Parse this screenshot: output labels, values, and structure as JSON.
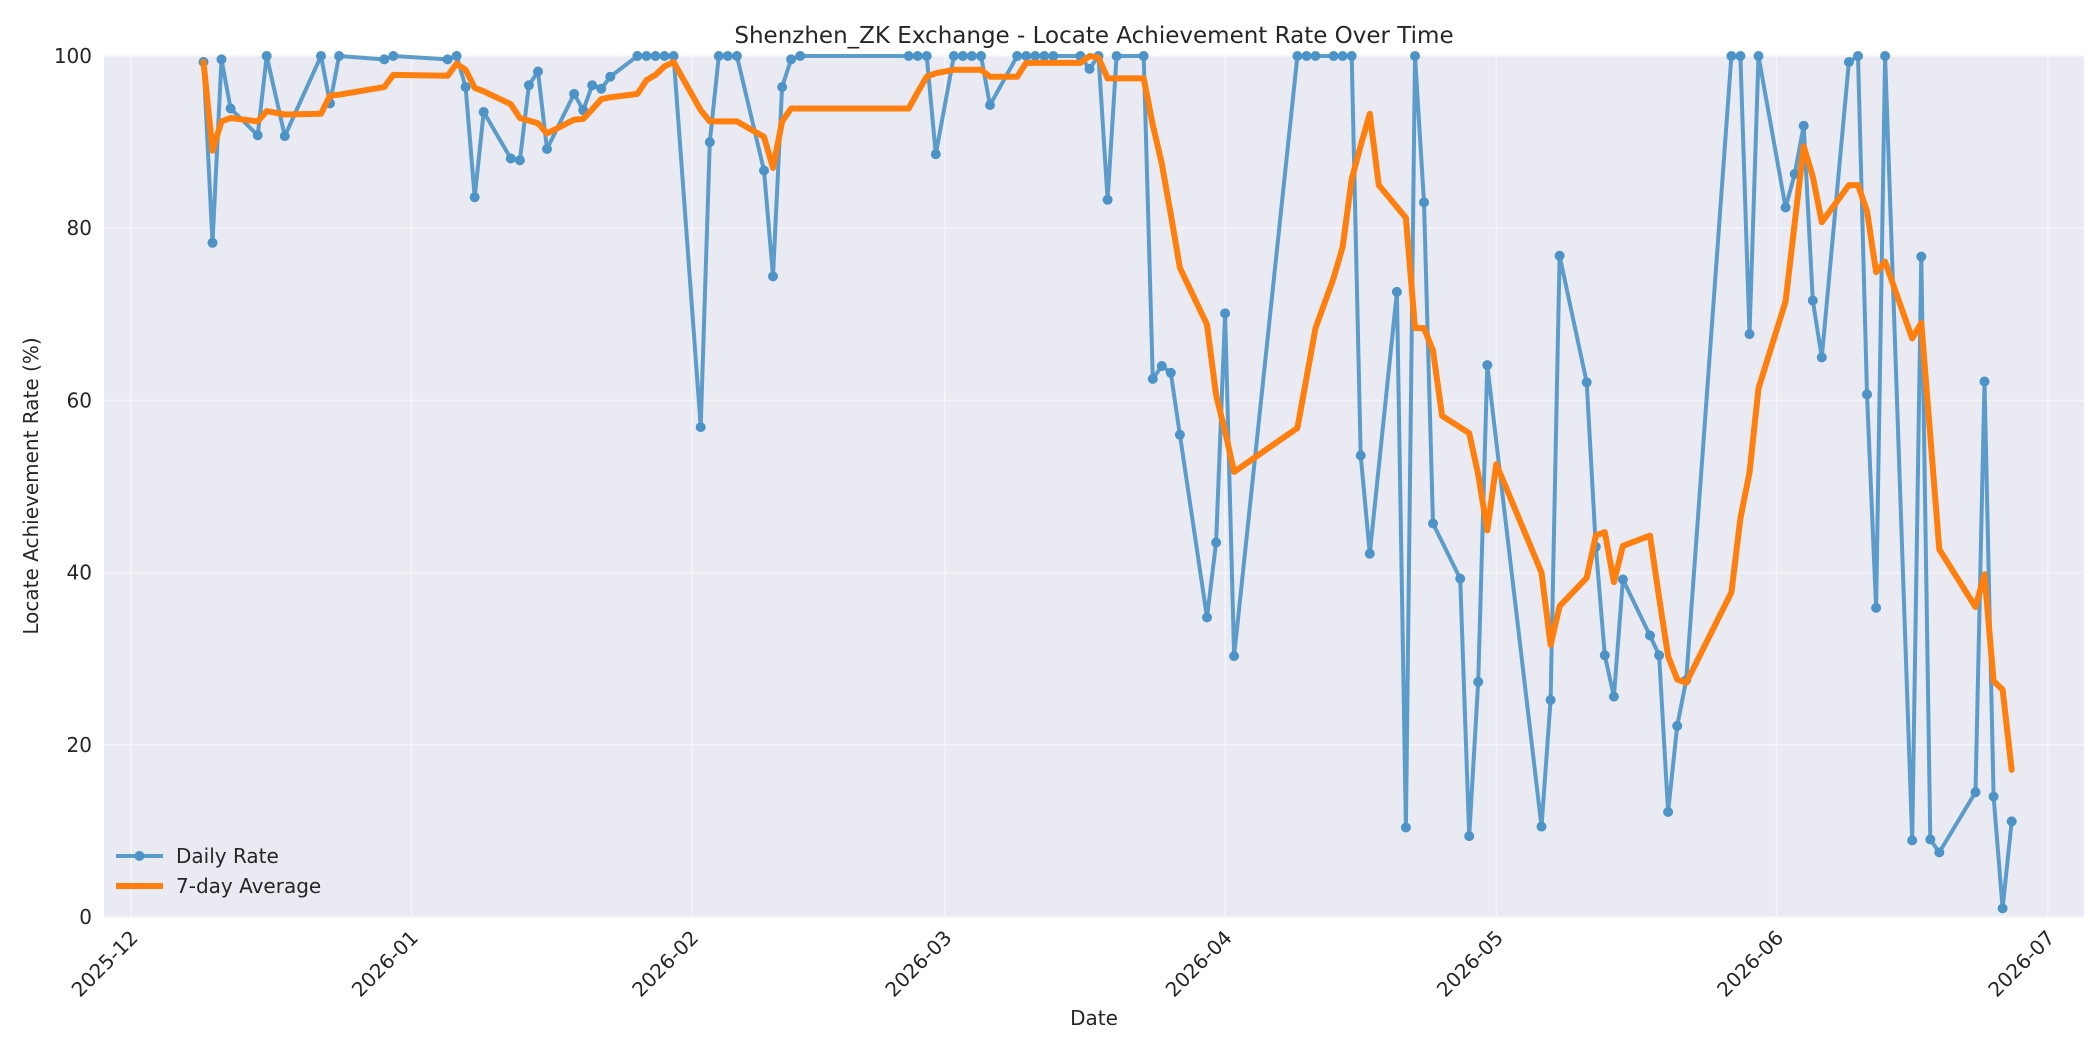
{
  "chart_data": {
    "type": "line",
    "title": "Shenzhen_ZK Exchange - Locate Achievement Rate Over Time",
    "xlabel": "Date",
    "ylabel": "Locate Achievement Rate (%)",
    "ylim": [
      0,
      100
    ],
    "xlim": [
      "2025-11-28",
      "2026-07-05"
    ],
    "yticks": [
      0,
      20,
      40,
      60,
      80,
      100
    ],
    "xticks": [
      "2025-12",
      "2026-01",
      "2026-02",
      "2026-03",
      "2026-04",
      "2026-05",
      "2026-06",
      "2026-07"
    ],
    "xtick_dates": [
      "2025-12-01",
      "2026-01-01",
      "2026-02-01",
      "2026-03-01",
      "2026-04-01",
      "2026-05-01",
      "2026-06-01",
      "2026-07-01"
    ],
    "grid": true,
    "legend": "bottom-left",
    "colors": {
      "daily": "#4c93c7",
      "avg": "#ff7f0e",
      "plot_bg": "#eaeaf2",
      "grid": "#f5f5f9"
    },
    "series": [
      {
        "name": "Daily Rate",
        "style": "line-markers",
        "points": [
          [
            "2025-12-09",
            99.3
          ],
          [
            "2025-12-10",
            78.3
          ],
          [
            "2025-12-11",
            99.6
          ],
          [
            "2025-12-12",
            93.9
          ],
          [
            "2025-12-15",
            90.8
          ],
          [
            "2025-12-16",
            100
          ],
          [
            "2025-12-18",
            90.7
          ],
          [
            "2025-12-22",
            100
          ],
          [
            "2025-12-23",
            94.5
          ],
          [
            "2025-12-24",
            100
          ],
          [
            "2025-12-29",
            99.6
          ],
          [
            "2025-12-30",
            100
          ],
          [
            "2026-01-05",
            99.6
          ],
          [
            "2026-01-06",
            100
          ],
          [
            "2026-01-07",
            96.4
          ],
          [
            "2026-01-08",
            83.6
          ],
          [
            "2026-01-09",
            93.5
          ],
          [
            "2026-01-12",
            88.1
          ],
          [
            "2026-01-13",
            87.9
          ],
          [
            "2026-01-14",
            96.6
          ],
          [
            "2026-01-15",
            98.2
          ],
          [
            "2026-01-16",
            89.2
          ],
          [
            "2026-01-19",
            95.6
          ],
          [
            "2026-01-20",
            93.7
          ],
          [
            "2026-01-21",
            96.6
          ],
          [
            "2026-01-22",
            96.2
          ],
          [
            "2026-01-23",
            97.6
          ],
          [
            "2026-01-26",
            100
          ],
          [
            "2026-01-27",
            100
          ],
          [
            "2026-01-28",
            100
          ],
          [
            "2026-01-29",
            100
          ],
          [
            "2026-01-30",
            100
          ],
          [
            "2026-02-02",
            56.9
          ],
          [
            "2026-02-03",
            90.0
          ],
          [
            "2026-02-04",
            100
          ],
          [
            "2026-02-05",
            100
          ],
          [
            "2026-02-06",
            100
          ],
          [
            "2026-02-09",
            86.7
          ],
          [
            "2026-02-10",
            74.4
          ],
          [
            "2026-02-11",
            96.4
          ],
          [
            "2026-02-12",
            99.6
          ],
          [
            "2026-02-13",
            100
          ],
          [
            "2026-02-25",
            100
          ],
          [
            "2026-02-26",
            100
          ],
          [
            "2026-02-27",
            100
          ],
          [
            "2026-02-28",
            88.6
          ],
          [
            "2026-03-02",
            100
          ],
          [
            "2026-03-03",
            100
          ],
          [
            "2026-03-04",
            100
          ],
          [
            "2026-03-05",
            100
          ],
          [
            "2026-03-06",
            94.3
          ],
          [
            "2026-03-09",
            100
          ],
          [
            "2026-03-10",
            100
          ],
          [
            "2026-03-11",
            100
          ],
          [
            "2026-03-12",
            100
          ],
          [
            "2026-03-13",
            100
          ],
          [
            "2026-03-16",
            100
          ],
          [
            "2026-03-17",
            98.5
          ],
          [
            "2026-03-18",
            100
          ],
          [
            "2026-03-19",
            83.3
          ],
          [
            "2026-03-20",
            100
          ],
          [
            "2026-03-23",
            100
          ],
          [
            "2026-03-24",
            62.5
          ],
          [
            "2026-03-25",
            64.0
          ],
          [
            "2026-03-26",
            63.2
          ],
          [
            "2026-03-27",
            56.0
          ],
          [
            "2026-03-30",
            34.8
          ],
          [
            "2026-03-31",
            43.5
          ],
          [
            "2026-04-01",
            70.1
          ],
          [
            "2026-04-02",
            30.3
          ],
          [
            "2026-04-09",
            100
          ],
          [
            "2026-04-10",
            100
          ],
          [
            "2026-04-11",
            100
          ],
          [
            "2026-04-13",
            100
          ],
          [
            "2026-04-14",
            100
          ],
          [
            "2026-04-15",
            100
          ],
          [
            "2026-04-16",
            53.6
          ],
          [
            "2026-04-17",
            42.2
          ],
          [
            "2026-04-20",
            72.6
          ],
          [
            "2026-04-21",
            10.4
          ],
          [
            "2026-04-22",
            100
          ],
          [
            "2026-04-23",
            83.0
          ],
          [
            "2026-04-24",
            45.7
          ],
          [
            "2026-04-27",
            39.3
          ],
          [
            "2026-04-28",
            9.4
          ],
          [
            "2026-04-29",
            27.3
          ],
          [
            "2026-04-30",
            64.1
          ],
          [
            "2026-05-06",
            10.5
          ],
          [
            "2026-05-07",
            25.2
          ],
          [
            "2026-05-08",
            76.8
          ],
          [
            "2026-05-11",
            62.1
          ],
          [
            "2026-05-12",
            43.0
          ],
          [
            "2026-05-13",
            30.4
          ],
          [
            "2026-05-14",
            25.6
          ],
          [
            "2026-05-15",
            39.2
          ],
          [
            "2026-05-18",
            32.7
          ],
          [
            "2026-05-19",
            30.4
          ],
          [
            "2026-05-20",
            12.2
          ],
          [
            "2026-05-21",
            22.2
          ],
          [
            "2026-05-22",
            27.5
          ],
          [
            "2026-05-27",
            100
          ],
          [
            "2026-05-28",
            100
          ],
          [
            "2026-05-29",
            67.7
          ],
          [
            "2026-05-30",
            100
          ],
          [
            "2026-06-02",
            82.4
          ],
          [
            "2026-06-03",
            86.3
          ],
          [
            "2026-06-04",
            91.9
          ],
          [
            "2026-06-05",
            71.6
          ],
          [
            "2026-06-06",
            65.0
          ],
          [
            "2026-06-09",
            99.3
          ],
          [
            "2026-06-10",
            100
          ],
          [
            "2026-06-11",
            60.7
          ],
          [
            "2026-06-12",
            35.9
          ],
          [
            "2026-06-13",
            100
          ],
          [
            "2026-06-16",
            8.9
          ],
          [
            "2026-06-17",
            76.7
          ],
          [
            "2026-06-18",
            9.0
          ],
          [
            "2026-06-19",
            7.5
          ],
          [
            "2026-06-23",
            14.5
          ],
          [
            "2026-06-24",
            62.2
          ],
          [
            "2026-06-25",
            14.0
          ],
          [
            "2026-06-26",
            1.0
          ],
          [
            "2026-06-27",
            11.1
          ]
        ]
      },
      {
        "name": "7-day Average",
        "style": "line",
        "points": [
          [
            "2025-12-09",
            99.3
          ],
          [
            "2025-12-10",
            89.0
          ],
          [
            "2025-12-11",
            92.4
          ],
          [
            "2025-12-12",
            92.8
          ],
          [
            "2025-12-15",
            92.4
          ],
          [
            "2025-12-16",
            93.6
          ],
          [
            "2025-12-18",
            93.2
          ],
          [
            "2025-12-22",
            93.3
          ],
          [
            "2025-12-23",
            95.4
          ],
          [
            "2025-12-24",
            95.5
          ],
          [
            "2025-12-29",
            96.4
          ],
          [
            "2025-12-30",
            97.8
          ],
          [
            "2026-01-05",
            97.7
          ],
          [
            "2026-01-06",
            99.1
          ],
          [
            "2026-01-07",
            98.4
          ],
          [
            "2026-01-08",
            96.3
          ],
          [
            "2026-01-09",
            95.9
          ],
          [
            "2026-01-12",
            94.4
          ],
          [
            "2026-01-13",
            92.8
          ],
          [
            "2026-01-14",
            92.5
          ],
          [
            "2026-01-15",
            92.2
          ],
          [
            "2026-01-16",
            91.0
          ],
          [
            "2026-01-19",
            92.6
          ],
          [
            "2026-01-20",
            92.7
          ],
          [
            "2026-01-21",
            93.8
          ],
          [
            "2026-01-22",
            95.0
          ],
          [
            "2026-01-23",
            95.2
          ],
          [
            "2026-01-26",
            95.6
          ],
          [
            "2026-01-27",
            97.2
          ],
          [
            "2026-01-28",
            97.8
          ],
          [
            "2026-01-29",
            98.8
          ],
          [
            "2026-01-30",
            99.3
          ],
          [
            "2026-02-02",
            93.7
          ],
          [
            "2026-02-03",
            92.4
          ],
          [
            "2026-02-04",
            92.4
          ],
          [
            "2026-02-05",
            92.4
          ],
          [
            "2026-02-06",
            92.4
          ],
          [
            "2026-02-09",
            90.6
          ],
          [
            "2026-02-10",
            87.0
          ],
          [
            "2026-02-11",
            92.4
          ],
          [
            "2026-02-12",
            93.9
          ],
          [
            "2026-02-13",
            93.9
          ],
          [
            "2026-02-25",
            93.9
          ],
          [
            "2026-02-26",
            95.8
          ],
          [
            "2026-02-27",
            97.6
          ],
          [
            "2026-02-28",
            98.0
          ],
          [
            "2026-03-02",
            98.4
          ],
          [
            "2026-03-03",
            98.4
          ],
          [
            "2026-03-04",
            98.4
          ],
          [
            "2026-03-05",
            98.4
          ],
          [
            "2026-03-06",
            97.6
          ],
          [
            "2026-03-09",
            97.6
          ],
          [
            "2026-03-10",
            99.2
          ],
          [
            "2026-03-11",
            99.2
          ],
          [
            "2026-03-12",
            99.2
          ],
          [
            "2026-03-13",
            99.2
          ],
          [
            "2026-03-16",
            99.2
          ],
          [
            "2026-03-17",
            100
          ],
          [
            "2026-03-18",
            99.8
          ],
          [
            "2026-03-19",
            97.4
          ],
          [
            "2026-03-20",
            97.4
          ],
          [
            "2026-03-23",
            97.4
          ],
          [
            "2026-03-24",
            92.0
          ],
          [
            "2026-03-25",
            87.5
          ],
          [
            "2026-03-26",
            81.6
          ],
          [
            "2026-03-27",
            75.4
          ],
          [
            "2026-03-30",
            68.8
          ],
          [
            "2026-03-31",
            60.6
          ],
          [
            "2026-04-01",
            56.4
          ],
          [
            "2026-04-02",
            51.7
          ],
          [
            "2026-04-09",
            56.8
          ],
          [
            "2026-04-10",
            62.6
          ],
          [
            "2026-04-11",
            68.4
          ],
          [
            "2026-04-13",
            74.2
          ],
          [
            "2026-04-14",
            77.8
          ],
          [
            "2026-04-15",
            85.7
          ],
          [
            "2026-04-16",
            89.6
          ],
          [
            "2026-04-17",
            93.3
          ],
          [
            "2026-04-18",
            85.0
          ],
          [
            "2026-04-21",
            81.2
          ],
          [
            "2026-04-22",
            68.4
          ],
          [
            "2026-04-23",
            68.4
          ],
          [
            "2026-04-24",
            65.8
          ],
          [
            "2026-04-25",
            58.2
          ],
          [
            "2026-04-28",
            56.2
          ],
          [
            "2026-04-29",
            51.4
          ],
          [
            "2026-04-30",
            44.9
          ],
          [
            "2026-05-01",
            52.6
          ],
          [
            "2026-05-06",
            40.0
          ],
          [
            "2026-05-07",
            31.6
          ],
          [
            "2026-05-08",
            36.1
          ],
          [
            "2026-05-11",
            39.4
          ],
          [
            "2026-05-12",
            44.3
          ],
          [
            "2026-05-13",
            44.7
          ],
          [
            "2026-05-14",
            38.9
          ],
          [
            "2026-05-15",
            43.1
          ],
          [
            "2026-05-18",
            44.3
          ],
          [
            "2026-05-19",
            37.1
          ],
          [
            "2026-05-20",
            30.3
          ],
          [
            "2026-05-21",
            27.6
          ],
          [
            "2026-05-22",
            27.2
          ],
          [
            "2026-05-27",
            37.7
          ],
          [
            "2026-05-28",
            46.3
          ],
          [
            "2026-05-29",
            51.6
          ],
          [
            "2026-05-30",
            61.4
          ],
          [
            "2026-06-02",
            71.5
          ],
          [
            "2026-06-03",
            80.6
          ],
          [
            "2026-06-04",
            89.5
          ],
          [
            "2026-06-05",
            86.0
          ],
          [
            "2026-06-06",
            80.7
          ],
          [
            "2026-06-09",
            85.0
          ],
          [
            "2026-06-10",
            85.0
          ],
          [
            "2026-06-11",
            82.0
          ],
          [
            "2026-06-12",
            74.9
          ],
          [
            "2026-06-13",
            76.1
          ],
          [
            "2026-06-16",
            67.2
          ],
          [
            "2026-06-17",
            69.0
          ],
          [
            "2026-06-19",
            42.7
          ],
          [
            "2026-06-23",
            36.0
          ],
          [
            "2026-06-24",
            39.8
          ],
          [
            "2026-06-25",
            27.4
          ],
          [
            "2026-06-26",
            26.4
          ],
          [
            "2026-06-27",
            17.1
          ]
        ]
      }
    ]
  }
}
